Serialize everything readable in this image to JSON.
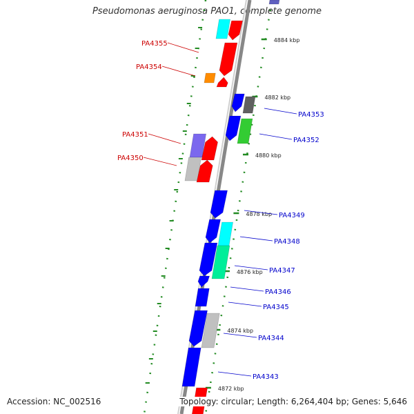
{
  "title": "Pseudomonas aeruginosa PAO1, complete genome",
  "footer": {
    "accession": "Accession: NC_002516",
    "summary": "Topology: circular; Length: 6,264,404 bp; Genes: 5,646"
  },
  "colors": {
    "red": "#ff0000",
    "blue": "#0000ff",
    "cyan": "#00ffff",
    "orange": "#ff8c00",
    "gray": "#c0c0c0",
    "darkgray": "#606060",
    "green": "#33cc33",
    "teal": "#00ee99",
    "lavender": "#7b68ee",
    "tick": "#228b22",
    "label_red": "#cc0000",
    "label_blue": "#0000cc"
  },
  "scale_labels": [
    "4884 kbp",
    "4882 kbp",
    "4880 kbp",
    "4878 kbp",
    "4876 kbp",
    "4874 kbp",
    "4872 kbp"
  ],
  "gene_labels_left": [
    "PA4355",
    "PA4354",
    "PA4351",
    "PA4350"
  ],
  "gene_labels_right": [
    "PA4353",
    "PA4352",
    "PA4349",
    "PA4348",
    "PA4347",
    "PA4346",
    "PA4345",
    "PA4344",
    "PA4343"
  ]
}
